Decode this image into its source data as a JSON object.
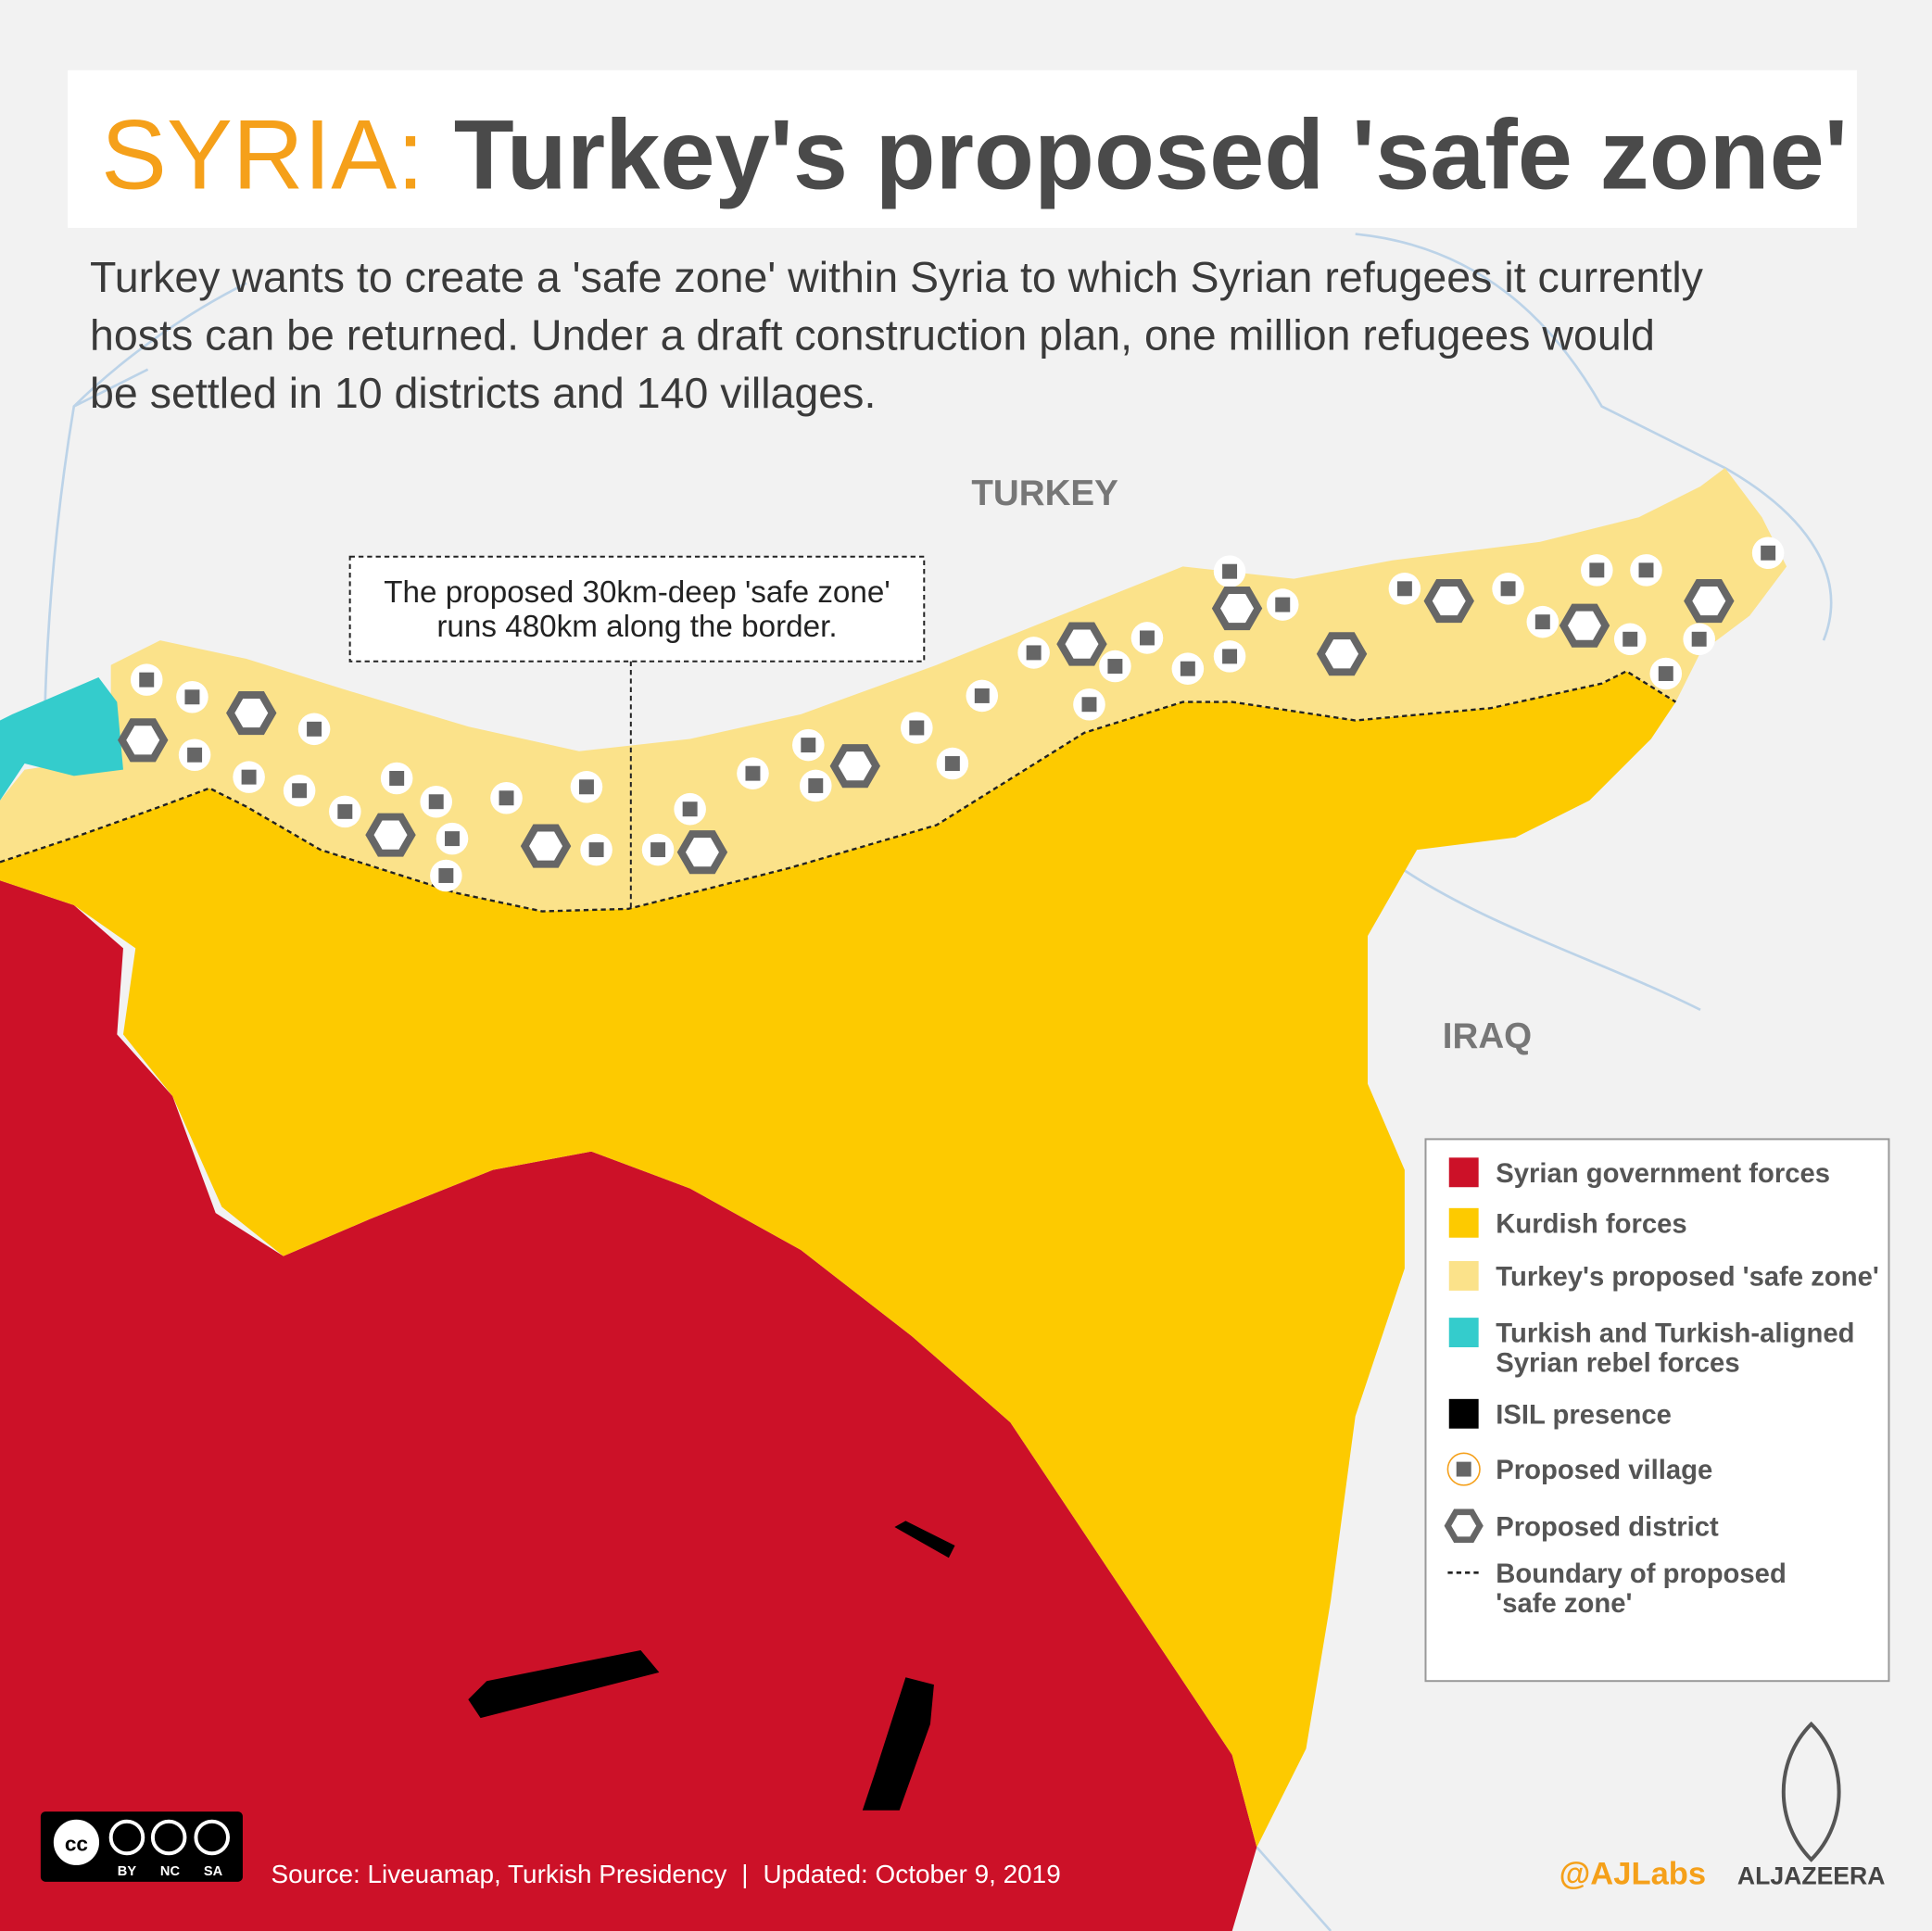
{
  "header": {
    "kicker": "SYRIA:",
    "title": "Turkey's proposed 'safe zone'"
  },
  "description": [
    "Turkey wants to create a 'safe zone' within Syria to which Syrian refugees it currently",
    "hosts can be returned. Under a draft construction plan, one million refugees would",
    "be settled in 10 districts and 140 villages."
  ],
  "map": {
    "labels": [
      "TURKEY",
      "IRAQ"
    ],
    "callout": [
      "The proposed 30km-deep 'safe zone'",
      "runs 480km along the border."
    ]
  },
  "legend": [
    [
      "Syrian government forces"
    ],
    [
      "Kurdish forces"
    ],
    [
      "Turkey's proposed 'safe zone'"
    ],
    [
      "Turkish and Turkish-aligned",
      "Syrian rebel forces"
    ],
    [
      "ISIL presence"
    ],
    [
      "Proposed village"
    ],
    [
      "Proposed district"
    ],
    [
      "Boundary of proposed",
      "'safe zone'"
    ]
  ],
  "footer": {
    "license": [
      "BY",
      "NC",
      "SA"
    ],
    "source": "Source: Liveuamap, Turkish Presidency",
    "separator": "|",
    "updated": "Updated: October 9, 2019",
    "handle": "@AJLabs",
    "brand": "ALJAZEERA"
  }
}
